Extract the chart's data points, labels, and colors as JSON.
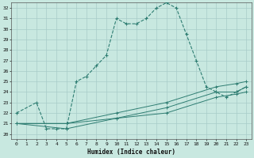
{
  "title": "",
  "xlabel": "Humidex (Indice chaleur)",
  "xlim": [
    -0.5,
    23.5
  ],
  "ylim": [
    19.5,
    32.5
  ],
  "xticks": [
    0,
    1,
    2,
    3,
    4,
    5,
    6,
    7,
    8,
    9,
    10,
    11,
    12,
    13,
    14,
    15,
    16,
    17,
    18,
    19,
    20,
    21,
    22,
    23
  ],
  "yticks": [
    20,
    21,
    22,
    23,
    24,
    25,
    26,
    27,
    28,
    29,
    30,
    31,
    32
  ],
  "bg_color": "#c8e8e0",
  "line_color": "#2e7d72",
  "grid_color": "#a8ccc8",
  "line1_x": [
    0,
    2,
    3,
    4,
    5,
    6,
    7,
    8,
    9,
    10,
    11,
    12,
    13,
    14,
    15,
    16,
    17,
    18,
    19,
    20,
    21,
    22,
    23
  ],
  "line1_y": [
    22,
    23,
    20.5,
    20.5,
    20.5,
    25,
    25.5,
    26.5,
    27.5,
    31,
    30.5,
    30.5,
    31,
    32,
    32.5,
    32,
    29.5,
    27,
    24.5,
    24,
    23.5,
    24,
    24.5
  ],
  "line2_x": [
    0,
    5,
    10,
    15,
    20,
    22,
    23
  ],
  "line2_y": [
    21,
    20.5,
    21.5,
    22.5,
    24.0,
    24.0,
    24.5
  ],
  "line3_x": [
    0,
    5,
    10,
    15,
    20,
    22,
    23
  ],
  "line3_y": [
    21,
    21.0,
    21.5,
    22.0,
    23.5,
    23.8,
    24.0
  ],
  "line4_x": [
    0,
    5,
    10,
    15,
    20,
    22,
    23
  ],
  "line4_y": [
    21,
    21.0,
    22.0,
    23.0,
    24.5,
    24.8,
    25.0
  ]
}
